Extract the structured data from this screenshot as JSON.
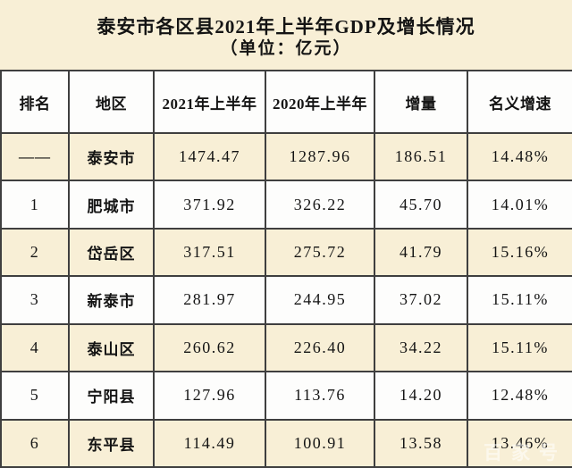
{
  "chart_data": {
    "type": "table",
    "title": "泰安市各区县2021年上半年GDP及增长情况",
    "subtitle": "（单位：亿元）",
    "columns": [
      "排名",
      "地区",
      "2021年上半年",
      "2020年上半年",
      "增量",
      "名义增速"
    ],
    "rows": [
      [
        "——",
        "泰安市",
        "1474.47",
        "1287.96",
        "186.51",
        "14.48%"
      ],
      [
        "1",
        "肥城市",
        "371.92",
        "326.22",
        "45.70",
        "14.01%"
      ],
      [
        "2",
        "岱岳区",
        "317.51",
        "275.72",
        "41.79",
        "15.16%"
      ],
      [
        "3",
        "新泰市",
        "281.97",
        "244.95",
        "37.02",
        "15.11%"
      ],
      [
        "4",
        "泰山区",
        "260.62",
        "226.40",
        "34.22",
        "15.11%"
      ],
      [
        "5",
        "宁阳县",
        "127.96",
        "113.76",
        "14.20",
        "12.48%"
      ],
      [
        "6",
        "东平县",
        "114.49",
        "100.91",
        "13.58",
        "13.46%"
      ]
    ]
  },
  "watermark": {
    "text": "百家号"
  },
  "colors": {
    "cream_background": "#f8efd6",
    "row_white": "#fdfdfc",
    "border_dark": "#3f3f3f",
    "text": "#141414",
    "watermark": "#ffffff"
  }
}
